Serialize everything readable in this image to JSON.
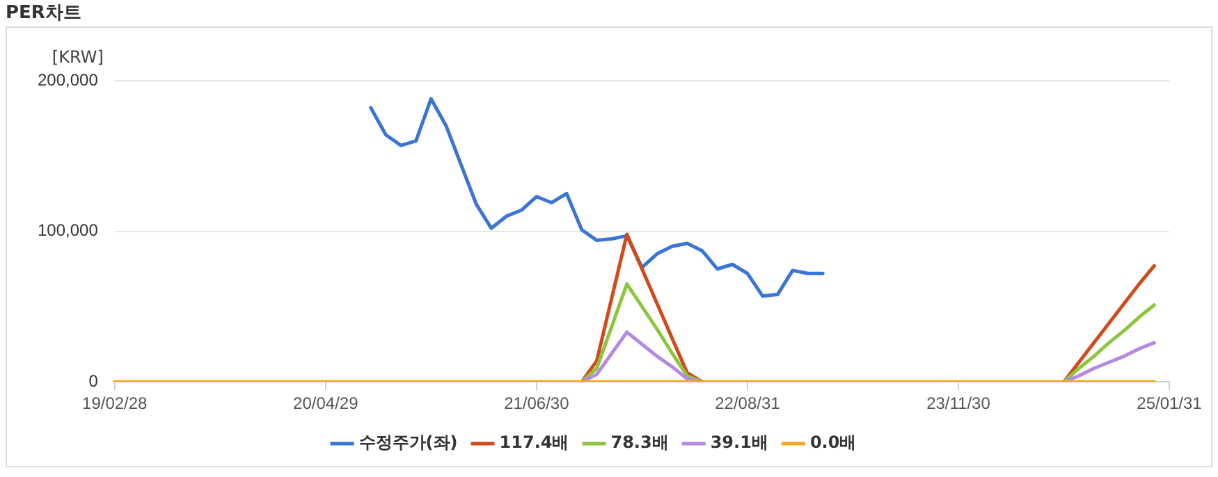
{
  "chart_data": {
    "type": "line",
    "title": "PER차트",
    "ylabel": "[KRW]",
    "categories": [
      "19/02/28",
      null,
      null,
      null,
      null,
      null,
      null,
      null,
      null,
      null,
      null,
      null,
      null,
      null,
      "20/04/29",
      null,
      null,
      null,
      null,
      null,
      null,
      null,
      null,
      null,
      null,
      null,
      null,
      null,
      "21/06/30",
      null,
      null,
      null,
      null,
      null,
      null,
      null,
      null,
      null,
      null,
      null,
      null,
      null,
      "22/08/31",
      null,
      null,
      null,
      null,
      null,
      null,
      null,
      null,
      null,
      null,
      null,
      null,
      null,
      "23/11/30",
      null,
      null,
      null,
      null,
      null,
      null,
      null,
      null,
      null,
      null,
      null,
      null,
      null,
      "25/01/31"
    ],
    "series": [
      {
        "name": "수정주가(좌)",
        "color": "#3a75d6",
        "values": [
          null,
          null,
          null,
          null,
          null,
          null,
          null,
          null,
          null,
          null,
          null,
          null,
          null,
          null,
          null,
          null,
          null,
          182000,
          164000,
          157000,
          160000,
          188000,
          170000,
          144000,
          118000,
          102000,
          110000,
          114000,
          123000,
          119000,
          125000,
          101000,
          94000,
          95000,
          97000,
          76000,
          85000,
          90000,
          92000,
          87000,
          75000,
          78000,
          72000,
          57000,
          58000,
          74000,
          72000,
          72000,
          null,
          null,
          null,
          null,
          null,
          null,
          null,
          null,
          null,
          null,
          null,
          null,
          null,
          null,
          null,
          null,
          null,
          null,
          null,
          null,
          null,
          null,
          null
        ]
      },
      {
        "name": "117.4배",
        "color": "#d04a1a",
        "values": [
          null,
          null,
          null,
          null,
          null,
          null,
          null,
          null,
          null,
          null,
          null,
          null,
          null,
          null,
          null,
          null,
          null,
          null,
          null,
          null,
          null,
          null,
          null,
          null,
          null,
          null,
          null,
          null,
          null,
          null,
          null,
          0,
          14000,
          56000,
          98000,
          75000,
          52000,
          29000,
          6000,
          0,
          null,
          null,
          null,
          null,
          null,
          null,
          null,
          null,
          null,
          null,
          null,
          null,
          null,
          null,
          null,
          null,
          null,
          null,
          null,
          null,
          null,
          null,
          null,
          0,
          13000,
          26000,
          39000,
          52000,
          65000,
          77000,
          null
        ]
      },
      {
        "name": "78.3배",
        "color": "#8cc63e",
        "values": [
          null,
          null,
          null,
          null,
          null,
          null,
          null,
          null,
          null,
          null,
          null,
          null,
          null,
          null,
          null,
          null,
          null,
          null,
          null,
          null,
          null,
          null,
          null,
          null,
          null,
          null,
          null,
          null,
          null,
          null,
          null,
          0,
          9000,
          37000,
          65000,
          50000,
          35000,
          19000,
          4000,
          0,
          null,
          null,
          null,
          null,
          null,
          null,
          null,
          null,
          null,
          null,
          null,
          null,
          null,
          null,
          null,
          null,
          null,
          null,
          null,
          null,
          null,
          null,
          null,
          0,
          9000,
          17000,
          26000,
          34000,
          43000,
          51000,
          null
        ]
      },
      {
        "name": "39.1배",
        "color": "#b48ae0",
        "values": [
          null,
          null,
          null,
          null,
          null,
          null,
          null,
          null,
          null,
          null,
          null,
          null,
          null,
          null,
          null,
          null,
          null,
          null,
          null,
          null,
          null,
          null,
          null,
          null,
          null,
          null,
          null,
          null,
          null,
          null,
          null,
          0,
          5000,
          19000,
          33000,
          25000,
          17000,
          10000,
          2000,
          0,
          null,
          null,
          null,
          null,
          null,
          null,
          null,
          null,
          null,
          null,
          null,
          null,
          null,
          null,
          null,
          null,
          null,
          null,
          null,
          null,
          null,
          null,
          null,
          0,
          4000,
          9000,
          13000,
          17000,
          22000,
          26000,
          null
        ]
      },
      {
        "name": "0.0배",
        "color": "#f5a623",
        "values": [
          0,
          0,
          0,
          0,
          0,
          0,
          0,
          0,
          0,
          0,
          0,
          0,
          0,
          0,
          0,
          0,
          0,
          0,
          0,
          0,
          0,
          0,
          0,
          0,
          0,
          0,
          0,
          0,
          0,
          0,
          0,
          0,
          0,
          0,
          0,
          0,
          0,
          0,
          0,
          0,
          0,
          0,
          0,
          0,
          0,
          0,
          0,
          0,
          0,
          0,
          0,
          0,
          0,
          0,
          0,
          0,
          0,
          0,
          0,
          0,
          0,
          0,
          0,
          0,
          0,
          0,
          0,
          0,
          0,
          0,
          null
        ]
      }
    ],
    "ylim": [
      0,
      200000
    ],
    "yticks": [
      {
        "value": 0,
        "label": "0"
      },
      {
        "value": 100000,
        "label": "100,000"
      },
      {
        "value": 200000,
        "label": "200,000"
      }
    ],
    "grid": "y",
    "legend": "bottom",
    "marker": "none"
  }
}
